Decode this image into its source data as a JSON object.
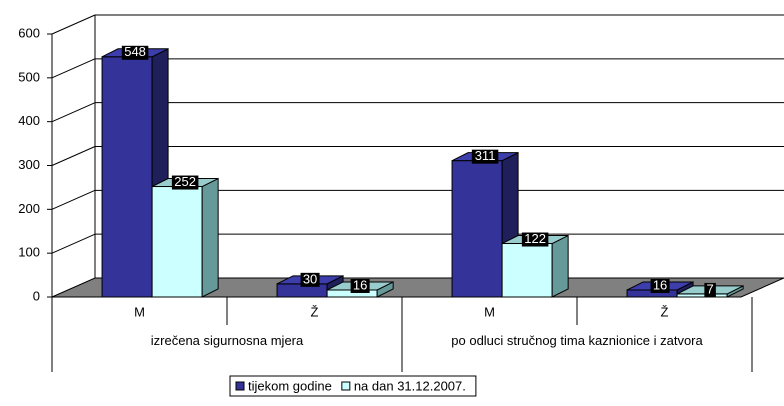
{
  "chart_data": {
    "type": "bar3d",
    "categories": [
      "M",
      "Ž",
      "M",
      "Ž"
    ],
    "category_groups": [
      "izrečena sigurnosna mjera",
      "po odluci stručnog tima kaznionice i zatvora"
    ],
    "series": [
      {
        "name": "tijekom godine",
        "color": "#333399",
        "values": [
          548,
          30,
          311,
          16
        ]
      },
      {
        "name": "na dan 31.12.2007.",
        "color": "#ccffff",
        "values": [
          252,
          16,
          122,
          7
        ]
      }
    ],
    "ylim": [
      0,
      600
    ],
    "yticks": [
      0,
      100,
      200,
      300,
      400,
      500,
      600
    ],
    "grid": true,
    "legend": "bottom"
  }
}
